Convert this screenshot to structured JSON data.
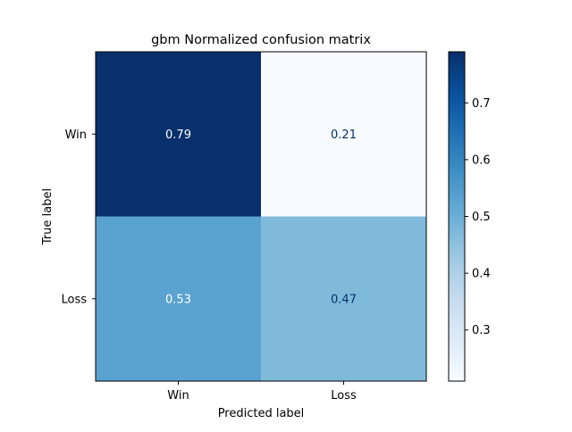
{
  "chart_data": {
    "type": "heatmap",
    "title": "gbm Normalized confusion matrix",
    "xlabel": "Predicted label",
    "ylabel": "True label",
    "x_categories": [
      "Win",
      "Loss"
    ],
    "y_categories": [
      "Win",
      "Loss"
    ],
    "values": [
      [
        0.79,
        0.21
      ],
      [
        0.53,
        0.47
      ]
    ],
    "colormap": "Blues",
    "colorbar": {
      "range": [
        0.21,
        0.79
      ],
      "ticks": [
        0.3,
        0.4,
        0.5,
        0.6,
        0.7
      ],
      "tick_labels": [
        "0.3",
        "0.4",
        "0.5",
        "0.6",
        "0.7"
      ]
    },
    "grid": false
  },
  "colors": {
    "text_dark": "#08306b",
    "text_light": "#ffffff",
    "axis": "#000000"
  }
}
